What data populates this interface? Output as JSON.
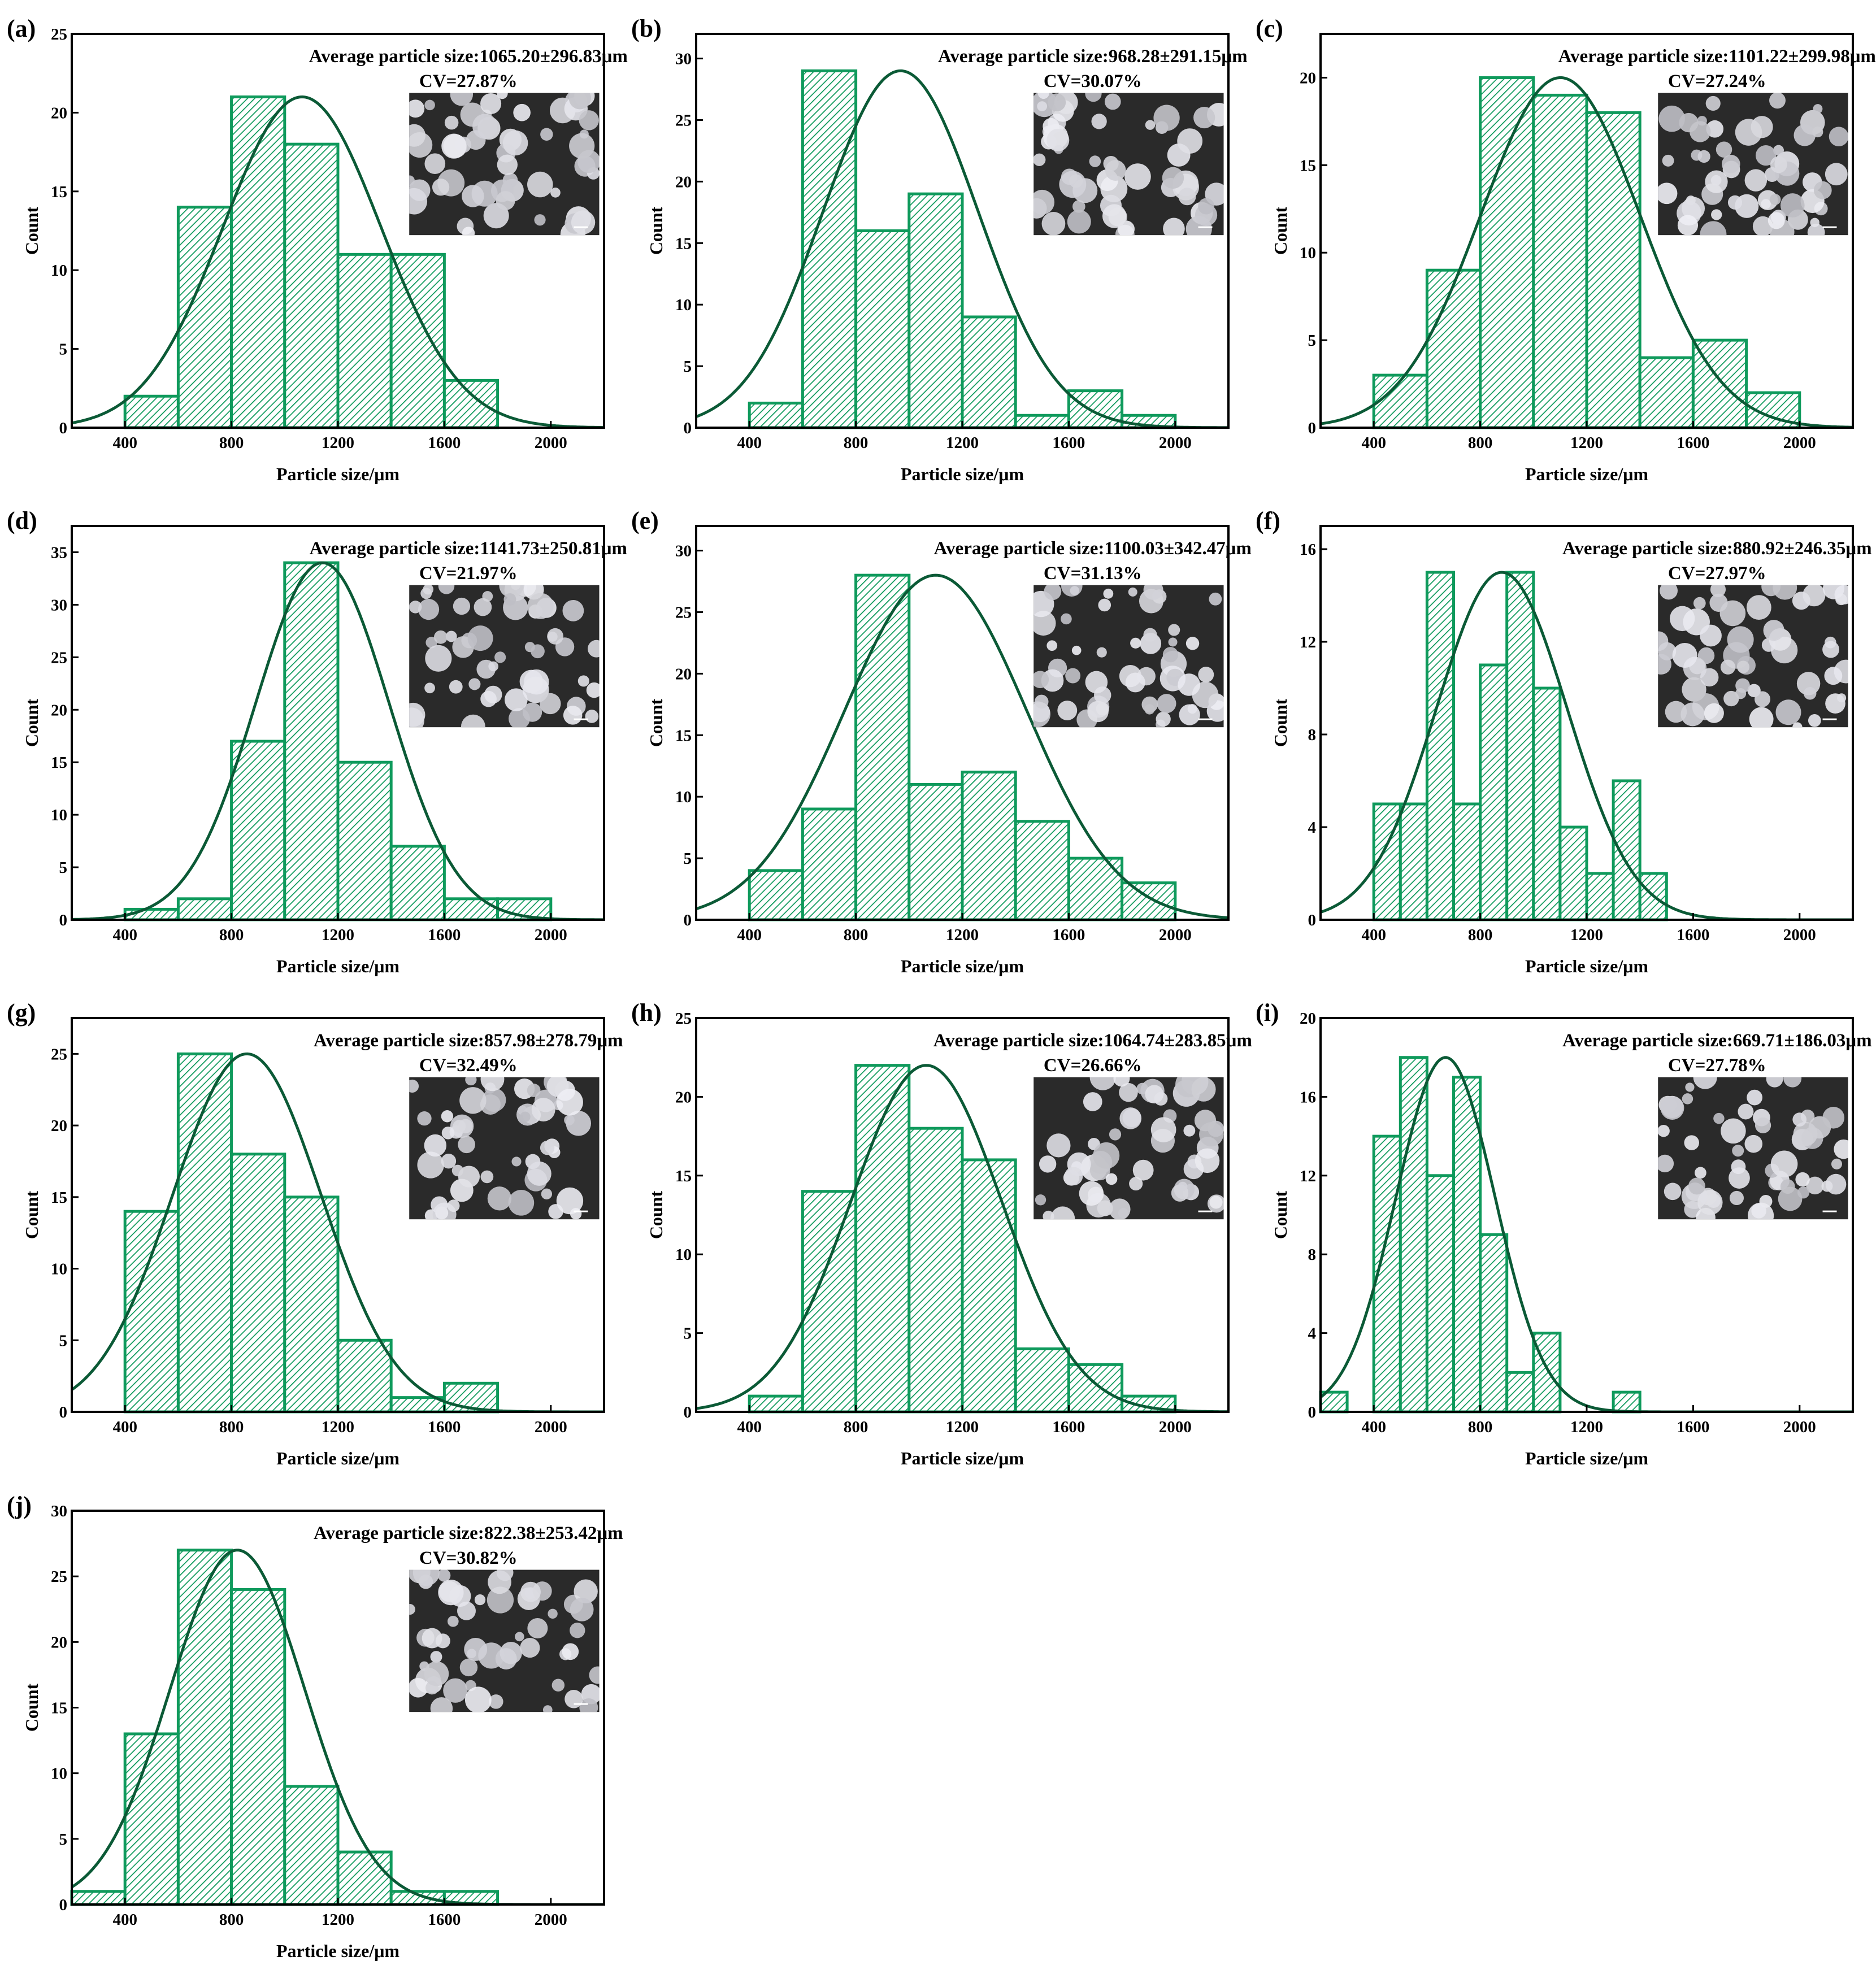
{
  "colors": {
    "bar_edge": "#0f9a5c",
    "hatch": "#0f9a5c",
    "fit_curve": "#0b5a36",
    "axis": "#000000",
    "inset_bg": "#2a2a2a"
  },
  "chart_data": [
    {
      "label": "(a)",
      "type": "bar",
      "bin_start": 400,
      "bin_width": 200,
      "values": [
        2,
        14,
        21,
        18,
        11,
        11,
        3
      ],
      "fit": {
        "mean": 1065.2,
        "sd": 296.83,
        "peak": 21
      },
      "annotation": "Average particle size:1065.20±296.83μm",
      "cv": "CV=27.87%",
      "xlabel": "Particle size/μm",
      "ylabel": "Count",
      "xlim": [
        200,
        2200
      ],
      "ylim": [
        0,
        25
      ],
      "xticks": [
        "400",
        "800",
        "1200",
        "1600",
        "2000"
      ],
      "yticks": [
        "0",
        "5",
        "10",
        "15",
        "20",
        "25"
      ]
    },
    {
      "label": "(b)",
      "type": "bar",
      "bin_start": 400,
      "bin_width": 200,
      "values": [
        2,
        29,
        16,
        19,
        9,
        1,
        3,
        1
      ],
      "fit": {
        "mean": 968.28,
        "sd": 291.15,
        "peak": 29
      },
      "annotation": "Average particle size:968.28±291.15μm",
      "cv": "CV=30.07%",
      "xlabel": "Particle size/μm",
      "ylabel": "Count",
      "xlim": [
        200,
        2200
      ],
      "ylim": [
        0,
        32
      ],
      "xticks": [
        "400",
        "800",
        "1200",
        "1600",
        "2000"
      ],
      "yticks": [
        "0",
        "5",
        "10",
        "15",
        "20",
        "25",
        "30"
      ]
    },
    {
      "label": "(c)",
      "type": "bar",
      "bin_start": 400,
      "bin_width": 200,
      "values": [
        3,
        9,
        20,
        19,
        18,
        4,
        5,
        2
      ],
      "fit": {
        "mean": 1101.22,
        "sd": 299.98,
        "peak": 20
      },
      "annotation": "Average particle size:1101.22±299.98μm",
      "cv": "CV=27.24%",
      "xlabel": "Particle size/μm",
      "ylabel": "Count",
      "xlim": [
        200,
        2200
      ],
      "ylim": [
        0,
        22.5
      ],
      "xticks": [
        "400",
        "800",
        "1200",
        "1600",
        "2000"
      ],
      "yticks": [
        "0",
        "5",
        "10",
        "15",
        "20"
      ]
    },
    {
      "label": "(d)",
      "type": "bar",
      "bin_start": 400,
      "bin_width": 200,
      "values": [
        1,
        2,
        17,
        34,
        15,
        7,
        2,
        2
      ],
      "fit": {
        "mean": 1141.73,
        "sd": 250.81,
        "peak": 34
      },
      "annotation": "Average particle size:1141.73±250.81μm",
      "cv": "CV=21.97%",
      "xlabel": "Particle size/μm",
      "ylabel": "Count",
      "xlim": [
        200,
        2200
      ],
      "ylim": [
        0,
        37.5
      ],
      "xticks": [
        "400",
        "800",
        "1200",
        "1600",
        "2000"
      ],
      "yticks": [
        "0",
        "5",
        "10",
        "15",
        "20",
        "25",
        "30",
        "35"
      ]
    },
    {
      "label": "(e)",
      "type": "bar",
      "bin_start": 400,
      "bin_width": 200,
      "values": [
        4,
        9,
        28,
        11,
        12,
        8,
        5,
        3
      ],
      "fit": {
        "mean": 1100.03,
        "sd": 342.47,
        "peak": 28
      },
      "annotation": "Average particle size:1100.03±342.47μm",
      "cv": "CV=31.13%",
      "xlabel": "Particle size/μm",
      "ylabel": "Count",
      "xlim": [
        200,
        2200
      ],
      "ylim": [
        0,
        32
      ],
      "xticks": [
        "400",
        "800",
        "1200",
        "1600",
        "2000"
      ],
      "yticks": [
        "0",
        "5",
        "10",
        "15",
        "20",
        "25",
        "30"
      ]
    },
    {
      "label": "(f)",
      "type": "bar",
      "bin_start": 400,
      "bin_width": 100,
      "values": [
        5,
        5,
        15,
        5,
        11,
        15,
        10,
        4,
        2,
        6,
        2
      ],
      "fit": {
        "mean": 880.92,
        "sd": 246.35,
        "peak": 15
      },
      "annotation": "Average particle size:880.92±246.35μm",
      "cv": "CV=27.97%",
      "xlabel": "Particle size/μm",
      "ylabel": "Count",
      "xlim": [
        200,
        2200
      ],
      "ylim": [
        0,
        17
      ],
      "xticks": [
        "400",
        "800",
        "1200",
        "1600",
        "2000"
      ],
      "yticks": [
        "0",
        "4",
        "8",
        "12",
        "16"
      ]
    },
    {
      "label": "(g)",
      "type": "bar",
      "bin_start": 400,
      "bin_width": 200,
      "values": [
        14,
        25,
        18,
        15,
        5,
        1,
        2
      ],
      "fit": {
        "mean": 857.98,
        "sd": 278.79,
        "peak": 25
      },
      "annotation": "Average particle size:857.98±278.79μm",
      "cv": "CV=32.49%",
      "xlabel": "Particle size/μm",
      "ylabel": "Count",
      "xlim": [
        200,
        2200
      ],
      "ylim": [
        0,
        27.5
      ],
      "xticks": [
        "400",
        "800",
        "1200",
        "1600",
        "2000"
      ],
      "yticks": [
        "0",
        "5",
        "10",
        "15",
        "20",
        "25"
      ]
    },
    {
      "label": "(h)",
      "type": "bar",
      "bin_start": 400,
      "bin_width": 200,
      "values": [
        1,
        14,
        22,
        18,
        16,
        4,
        3,
        1
      ],
      "fit": {
        "mean": 1064.74,
        "sd": 283.85,
        "peak": 22
      },
      "annotation": "Average particle size:1064.74±283.85μm",
      "cv": "CV=26.66%",
      "xlabel": "Particle size/μm",
      "ylabel": "Count",
      "xlim": [
        200,
        2200
      ],
      "ylim": [
        0,
        25
      ],
      "xticks": [
        "400",
        "800",
        "1200",
        "1600",
        "2000"
      ],
      "yticks": [
        "0",
        "5",
        "10",
        "15",
        "20",
        "25"
      ]
    },
    {
      "label": "(i)",
      "type": "bar",
      "bin_start": 200,
      "bin_width": 100,
      "values": [
        1,
        0,
        14,
        18,
        12,
        17,
        9,
        2,
        4,
        0,
        0,
        1
      ],
      "fit": {
        "mean": 669.71,
        "sd": 186.03,
        "peak": 18
      },
      "annotation": "Average particle size:669.71±186.03μm",
      "cv": "CV=27.78%",
      "xlabel": "Particle size/μm",
      "ylabel": "Count",
      "xlim": [
        200,
        2200
      ],
      "ylim": [
        0,
        20
      ],
      "xticks": [
        "400",
        "800",
        "1200",
        "1600",
        "2000"
      ],
      "yticks": [
        "0",
        "4",
        "8",
        "12",
        "16",
        "20"
      ]
    },
    {
      "label": "(j)",
      "type": "bar",
      "bin_start": 200,
      "bin_width": 200,
      "values": [
        1,
        13,
        27,
        24,
        9,
        4,
        1,
        1
      ],
      "fit": {
        "mean": 822.38,
        "sd": 253.42,
        "peak": 27
      },
      "annotation": "Average particle size:822.38±253.42μm",
      "cv": "CV=30.82%",
      "xlabel": "Particle size/μm",
      "ylabel": "Count",
      "xlim": [
        200,
        2200
      ],
      "ylim": [
        0,
        30
      ],
      "xticks": [
        "400",
        "800",
        "1200",
        "1600",
        "2000"
      ],
      "yticks": [
        "0",
        "5",
        "10",
        "15",
        "20",
        "25",
        "30"
      ]
    }
  ]
}
